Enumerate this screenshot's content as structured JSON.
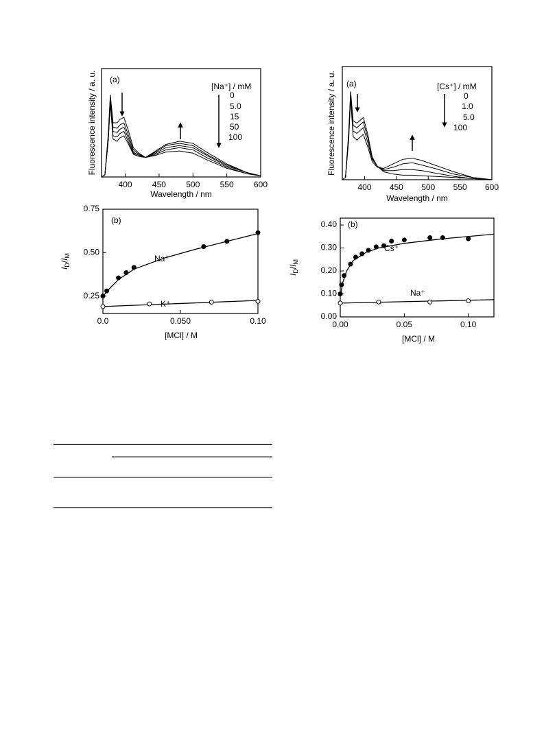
{
  "chart_data": [
    {
      "type": "line",
      "panel": "(a)",
      "ylabel": "Fluorescence intensity / a. u.",
      "xlabel": "Wavelength / nm",
      "legend_title": "[Na⁺] / mM",
      "xlim": [
        365,
        600
      ],
      "xticks": [
        400,
        450,
        500,
        550,
        600
      ],
      "ylim": [
        0,
        1
      ],
      "x": [
        365,
        370,
        375,
        378,
        382,
        388,
        392,
        398,
        405,
        412,
        420,
        430,
        445,
        460,
        480,
        500,
        520,
        550,
        580,
        600
      ],
      "series": [
        {
          "name": "0",
          "color": "#000000",
          "values": [
            0,
            0.02,
            0.4,
            0.76,
            0.5,
            0.5,
            0.53,
            0.55,
            0.42,
            0.27,
            0.22,
            0.18,
            0.2,
            0.23,
            0.24,
            0.22,
            0.16,
            0.08,
            0.03,
            0.01
          ]
        },
        {
          "name": "5.0",
          "color": "#000000",
          "values": [
            0,
            0.02,
            0.38,
            0.74,
            0.46,
            0.45,
            0.48,
            0.5,
            0.38,
            0.25,
            0.21,
            0.18,
            0.21,
            0.25,
            0.27,
            0.25,
            0.18,
            0.09,
            0.03,
            0.01
          ]
        },
        {
          "name": "15",
          "color": "#000000",
          "values": [
            0,
            0.02,
            0.36,
            0.72,
            0.42,
            0.41,
            0.44,
            0.46,
            0.35,
            0.23,
            0.2,
            0.18,
            0.22,
            0.27,
            0.29,
            0.27,
            0.2,
            0.1,
            0.04,
            0.01
          ]
        },
        {
          "name": "50",
          "color": "#000000",
          "values": [
            0,
            0.02,
            0.35,
            0.7,
            0.38,
            0.37,
            0.4,
            0.42,
            0.32,
            0.22,
            0.2,
            0.18,
            0.23,
            0.29,
            0.31,
            0.29,
            0.21,
            0.11,
            0.04,
            0.01
          ]
        },
        {
          "name": "100",
          "color": "#000000",
          "values": [
            0,
            0.02,
            0.34,
            0.68,
            0.35,
            0.33,
            0.36,
            0.38,
            0.3,
            0.21,
            0.19,
            0.18,
            0.24,
            0.3,
            0.33,
            0.31,
            0.23,
            0.12,
            0.04,
            0.01
          ]
        }
      ]
    },
    {
      "type": "line",
      "panel": "(a)",
      "ylabel": "Fluorescence intensity / a. u.",
      "xlabel": "Wavelength / nm",
      "legend_title": "[Cs⁺] / mM",
      "xlim": [
        365,
        600
      ],
      "xticks": [
        400,
        450,
        500,
        550,
        600
      ],
      "ylim": [
        0,
        1
      ],
      "x": [
        365,
        370,
        375,
        378,
        382,
        388,
        392,
        398,
        405,
        412,
        420,
        430,
        445,
        460,
        475,
        490,
        510,
        540,
        570,
        600
      ],
      "series": [
        {
          "name": "0",
          "color": "#000000",
          "values": [
            0,
            0.02,
            0.42,
            0.78,
            0.52,
            0.5,
            0.52,
            0.55,
            0.4,
            0.2,
            0.12,
            0.07,
            0.05,
            0.04,
            0.04,
            0.035,
            0.03,
            0.02,
            0.01,
            0
          ]
        },
        {
          "name": "1.0",
          "color": "#000000",
          "values": [
            0,
            0.02,
            0.4,
            0.76,
            0.48,
            0.46,
            0.48,
            0.51,
            0.37,
            0.19,
            0.12,
            0.08,
            0.08,
            0.09,
            0.09,
            0.08,
            0.06,
            0.03,
            0.01,
            0
          ]
        },
        {
          "name": "5.0",
          "color": "#000000",
          "values": [
            0,
            0.02,
            0.38,
            0.74,
            0.43,
            0.41,
            0.43,
            0.46,
            0.33,
            0.18,
            0.12,
            0.09,
            0.11,
            0.14,
            0.15,
            0.13,
            0.1,
            0.05,
            0.02,
            0
          ]
        },
        {
          "name": "100",
          "color": "#000000",
          "values": [
            0,
            0.02,
            0.35,
            0.72,
            0.38,
            0.35,
            0.37,
            0.4,
            0.29,
            0.16,
            0.11,
            0.1,
            0.14,
            0.18,
            0.19,
            0.17,
            0.13,
            0.07,
            0.02,
            0
          ]
        }
      ]
    },
    {
      "type": "scatter",
      "panel": "(b)",
      "ylabel": "ID/IM",
      "xlabel": "[MCl] / M",
      "xlim": [
        0,
        0.1
      ],
      "xticks": [
        {
          "value": 0,
          "label": "0.0"
        },
        {
          "value": 0.05,
          "label": "0.050"
        },
        {
          "value": 0.1,
          "label": "0.10"
        }
      ],
      "ylim": [
        0.15,
        0.75
      ],
      "yticks": [
        0.25,
        {
          "value": 0.5,
          "label": "0.50"
        },
        0.75
      ],
      "series": [
        {
          "name": "Na⁺",
          "color": "#000000",
          "marker": "filled",
          "x": [
            0,
            0.0025,
            0.01,
            0.015,
            0.02,
            0.065,
            0.08,
            0.1
          ],
          "values": [
            0.25,
            0.28,
            0.355,
            0.385,
            0.415,
            0.535,
            0.565,
            0.615
          ],
          "fit_x": [
            0,
            0.005,
            0.01,
            0.02,
            0.04,
            0.06,
            0.08,
            0.1
          ],
          "fit_values": [
            0.25,
            0.3,
            0.345,
            0.405,
            0.47,
            0.52,
            0.565,
            0.61
          ]
        },
        {
          "name": "K⁺",
          "color": "#000000",
          "marker": "open",
          "x": [
            0,
            0.03,
            0.07,
            0.1
          ],
          "values": [
            0.19,
            0.205,
            0.215,
            0.22
          ],
          "fit_x": [
            0,
            0.1
          ],
          "fit_values": [
            0.19,
            0.225
          ]
        }
      ]
    },
    {
      "type": "scatter",
      "panel": "(b)",
      "ylabel": "ID/IM",
      "xlabel": "[MCl] / M",
      "xlim": [
        0,
        0.12
      ],
      "xticks": [
        {
          "value": 0,
          "label": "0.00"
        },
        0.05,
        {
          "value": 0.1,
          "label": "0.10"
        }
      ],
      "ylim": [
        0,
        0.43
      ],
      "yticks": [
        {
          "value": 0,
          "label": "0.00"
        },
        {
          "value": 0.1,
          "label": "0.10"
        },
        {
          "value": 0.2,
          "label": "0.20"
        },
        {
          "value": 0.3,
          "label": "0.30"
        },
        {
          "value": 0.4,
          "label": "0.40"
        }
      ],
      "series": [
        {
          "name": "Cs⁺",
          "color": "#000000",
          "marker": "filled",
          "x": [
            0,
            0.001,
            0.003,
            0.008,
            0.012,
            0.017,
            0.022,
            0.028,
            0.034,
            0.04,
            0.05,
            0.07,
            0.08,
            0.1
          ],
          "values": [
            0.1,
            0.14,
            0.18,
            0.23,
            0.26,
            0.275,
            0.29,
            0.305,
            0.31,
            0.33,
            0.335,
            0.345,
            0.345,
            0.34
          ],
          "fit_x": [
            0,
            0.002,
            0.005,
            0.01,
            0.02,
            0.03,
            0.05,
            0.08,
            0.12
          ],
          "fit_values": [
            0.09,
            0.15,
            0.2,
            0.245,
            0.28,
            0.3,
            0.32,
            0.34,
            0.36
          ]
        },
        {
          "name": "Na⁺",
          "color": "#000000",
          "marker": "open",
          "x": [
            0,
            0.03,
            0.07,
            0.1
          ],
          "values": [
            0.06,
            0.065,
            0.065,
            0.07
          ],
          "fit_x": [
            0,
            0.12
          ],
          "fit_values": [
            0.06,
            0.075
          ]
        }
      ]
    }
  ]
}
